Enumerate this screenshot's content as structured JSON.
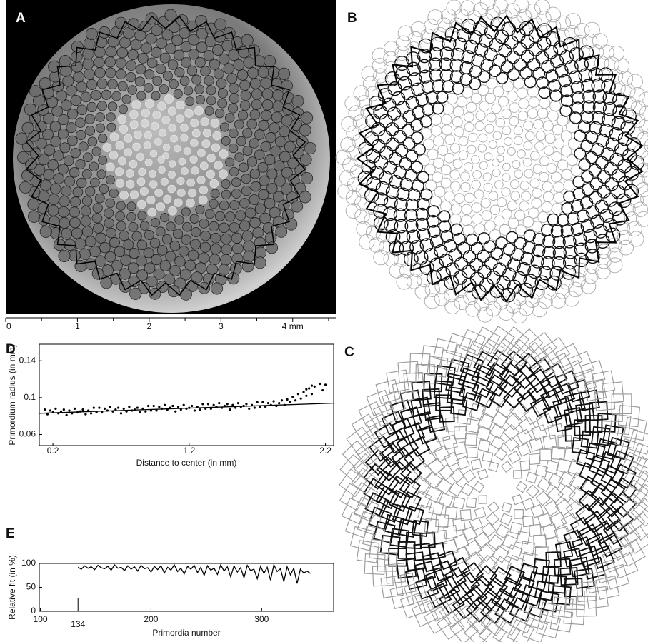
{
  "figure": {
    "labels": {
      "A": "A",
      "B": "B",
      "C": "C"
    },
    "scale_bar": {
      "xlim": [
        0,
        4.6
      ],
      "xticks": [
        0,
        1,
        2,
        3,
        {
          "value": 4,
          "label": "4 mm"
        }
      ]
    }
  },
  "chart_data": [
    {
      "type": "scatter",
      "panel": "D",
      "x_label": "Distance to center (in mm)",
      "y_label": "Primordium radius (in mm)",
      "xlim": [
        0.1,
        2.26
      ],
      "ylim": [
        0.048,
        0.158
      ],
      "xticks": [
        0.2,
        1.2,
        2.2
      ],
      "yticks": [
        0.06,
        0.1,
        0.14
      ],
      "series": [
        {
          "type": "scatter",
          "color": "#000",
          "x": [
            0.14,
            0.16,
            0.18,
            0.2,
            0.22,
            0.24,
            0.26,
            0.28,
            0.3,
            0.32,
            0.34,
            0.36,
            0.38,
            0.4,
            0.42,
            0.44,
            0.46,
            0.48,
            0.5,
            0.52,
            0.54,
            0.56,
            0.58,
            0.6,
            0.62,
            0.64,
            0.66,
            0.68,
            0.7,
            0.72,
            0.74,
            0.76,
            0.78,
            0.8,
            0.82,
            0.84,
            0.86,
            0.88,
            0.9,
            0.92,
            0.94,
            0.96,
            0.98,
            1.0,
            1.02,
            1.04,
            1.06,
            1.08,
            1.1,
            1.12,
            1.14,
            1.16,
            1.18,
            1.2,
            1.22,
            1.24,
            1.26,
            1.28,
            1.3,
            1.32,
            1.34,
            1.36,
            1.38,
            1.4,
            1.42,
            1.44,
            1.46,
            1.48,
            1.5,
            1.52,
            1.54,
            1.56,
            1.58,
            1.6,
            1.62,
            1.64,
            1.66,
            1.68,
            1.7,
            1.72,
            1.74,
            1.76,
            1.78,
            1.8,
            1.82,
            1.84,
            1.86,
            1.88,
            1.9,
            1.92,
            1.94,
            1.96,
            1.98,
            2.0,
            2.02,
            2.04,
            2.06,
            2.08,
            2.1,
            2.12,
            2.16,
            2.2,
            2.18,
            2.06,
            2.1
          ],
          "values": [
            0.087,
            0.082,
            0.086,
            0.084,
            0.088,
            0.083,
            0.085,
            0.087,
            0.081,
            0.086,
            0.083,
            0.088,
            0.084,
            0.085,
            0.087,
            0.082,
            0.086,
            0.083,
            0.089,
            0.084,
            0.089,
            0.084,
            0.088,
            0.086,
            0.09,
            0.085,
            0.087,
            0.089,
            0.083,
            0.088,
            0.085,
            0.09,
            0.086,
            0.087,
            0.089,
            0.084,
            0.088,
            0.085,
            0.091,
            0.086,
            0.091,
            0.086,
            0.09,
            0.088,
            0.092,
            0.087,
            0.089,
            0.091,
            0.085,
            0.09,
            0.087,
            0.092,
            0.088,
            0.089,
            0.091,
            0.086,
            0.09,
            0.087,
            0.093,
            0.088,
            0.093,
            0.088,
            0.092,
            0.09,
            0.094,
            0.089,
            0.091,
            0.093,
            0.087,
            0.092,
            0.089,
            0.094,
            0.09,
            0.091,
            0.093,
            0.088,
            0.092,
            0.089,
            0.095,
            0.09,
            0.095,
            0.09,
            0.094,
            0.092,
            0.096,
            0.091,
            0.094,
            0.097,
            0.092,
            0.098,
            0.095,
            0.101,
            0.097,
            0.104,
            0.099,
            0.106,
            0.102,
            0.11,
            0.104,
            0.112,
            0.115,
            0.114,
            0.108,
            0.109,
            0.113
          ]
        },
        {
          "type": "line",
          "color": "#000",
          "x": [
            0.1,
            2.26
          ],
          "values": [
            0.083,
            0.094
          ]
        }
      ]
    },
    {
      "type": "line",
      "panel": "E",
      "x_label": "Primordia number",
      "y_label": "Relative fit (in %)",
      "xlim": [
        99,
        365
      ],
      "ylim": [
        0,
        100
      ],
      "xticks": [
        100,
        134,
        200,
        300
      ],
      "yticks": [
        0,
        50,
        100
      ],
      "series": [
        {
          "color": "#000",
          "x": [
            134,
            137,
            140,
            143,
            146,
            149,
            152,
            155,
            158,
            161,
            164,
            167,
            170,
            173,
            176,
            179,
            182,
            185,
            188,
            191,
            194,
            197,
            200,
            203,
            206,
            209,
            212,
            215,
            218,
            221,
            224,
            227,
            230,
            233,
            236,
            239,
            242,
            245,
            248,
            251,
            254,
            257,
            260,
            263,
            266,
            269,
            272,
            275,
            278,
            281,
            284,
            287,
            290,
            293,
            296,
            299,
            302,
            305,
            308,
            311,
            314,
            317,
            320,
            323,
            326,
            329,
            332,
            335,
            338,
            341,
            344
          ],
          "values": [
            92,
            88,
            95,
            90,
            93,
            87,
            96,
            91,
            89,
            94,
            86,
            97,
            90,
            92,
            85,
            95,
            88,
            93,
            84,
            96,
            89,
            91,
            82,
            94,
            87,
            95,
            80,
            92,
            86,
            97,
            83,
            90,
            78,
            94,
            88,
            96,
            81,
            92,
            75,
            95,
            86,
            90,
            77,
            97,
            84,
            93,
            72,
            95,
            82,
            91,
            70,
            96,
            85,
            88,
            68,
            94,
            79,
            92,
            65,
            97,
            83,
            89,
            62,
            93,
            76,
            90,
            58,
            88,
            80,
            84,
            79
          ]
        }
      ]
    }
  ]
}
